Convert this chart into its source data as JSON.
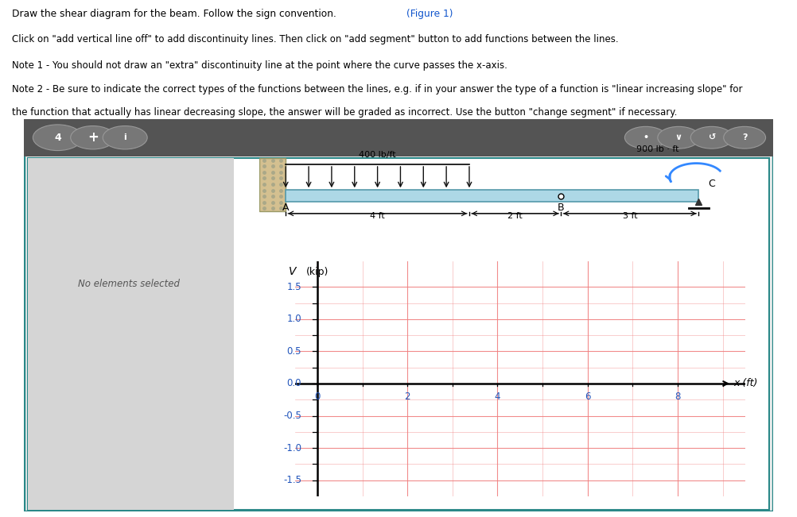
{
  "title_main": "Draw the shear diagram for the beam. Follow the sign convention. ",
  "title_link": "(Figure 1)",
  "inst1": "Click on \"add vertical line off\" to add discontinuity lines. Then click on \"add segment\" button to add functions between the lines.",
  "inst2": "Note 1 - You should not draw an \"extra\" discontinuity line at the point where the curve passes the x-axis.",
  "inst3": "Note 2 - Be sure to indicate the correct types of the functions between the lines, e.g. if in your answer the type of a function is \"linear increasing slope\" for",
  "inst4": "the function that actually has linear decreasing slope, the answer will be graded as incorrect. Use the button \"change segment\" if necessary.",
  "toolbar_bg": "#545454",
  "outer_border_color": "#2a8888",
  "left_panel_bg": "#d8d8d8",
  "right_bg": "#ffffff",
  "beam_color": "#add8e6",
  "beam_border": "#5599aa",
  "distributed_load": "400 lb/ft",
  "moment_label": "900 lb · ft",
  "label_A": "A",
  "label_B": "B",
  "label_C": "C",
  "dim_4ft": "4 ft",
  "dim_2ft": "2 ft",
  "dim_3ft": "3 ft",
  "no_elements_text": "No elements selected",
  "ylabel": "V (kip)",
  "xlabel": "x (ft)",
  "ytick_labels": [
    "-1.5",
    "-1.0",
    "-0.5",
    "0.0",
    "0.5",
    "1.0",
    "1.5"
  ],
  "ytick_vals": [
    -1.5,
    -1.0,
    -0.5,
    0.0,
    0.5,
    1.0,
    1.5
  ],
  "xtick_vals": [
    0,
    2,
    4,
    6,
    8
  ],
  "ylim": [
    -1.75,
    1.9
  ],
  "xlim": [
    -0.5,
    9.5
  ],
  "grid_color": "#f08080",
  "tick_label_color": "#2255bb"
}
